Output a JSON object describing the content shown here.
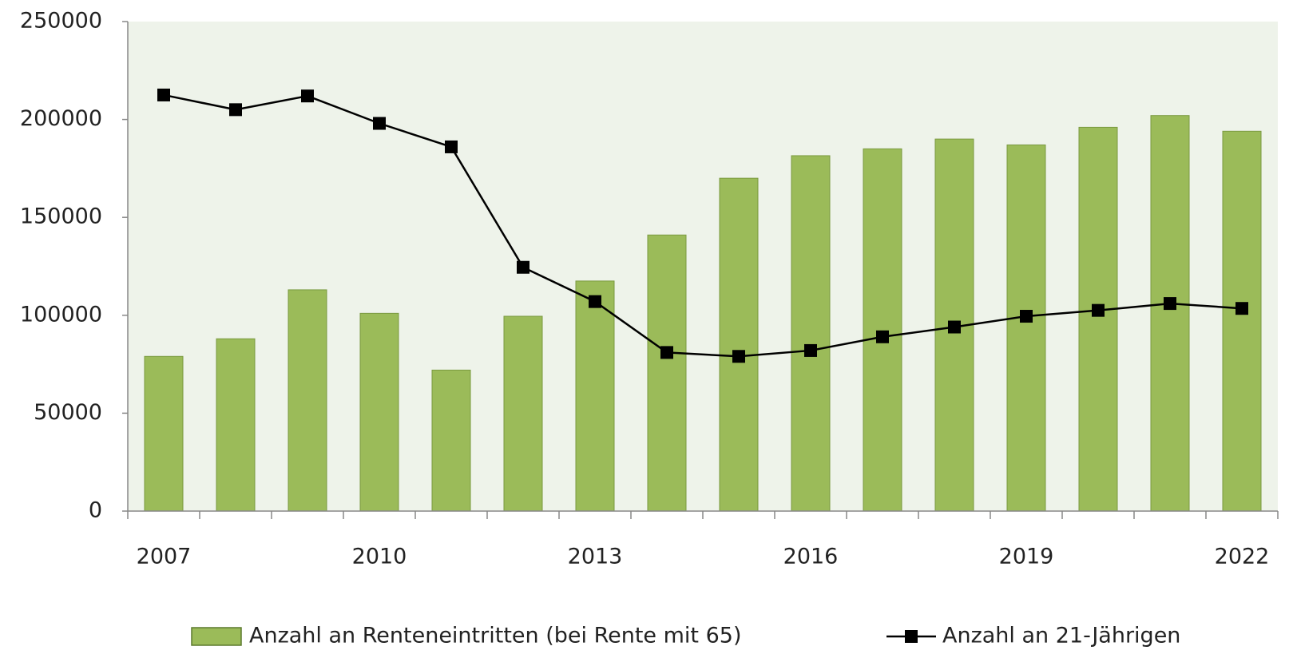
{
  "chart_data": {
    "type": "bar_line",
    "categories": [
      "2007",
      null,
      null,
      "2010",
      null,
      null,
      "2013",
      null,
      null,
      "2016",
      null,
      null,
      "2019",
      null,
      null,
      "2022"
    ],
    "series": [
      {
        "name": "Anzahl an Renteneintritten (bei Rente mit 65)",
        "type": "bar",
        "color": "#9bbb59",
        "values": [
          79000,
          88000,
          113000,
          101000,
          72000,
          99500,
          117500,
          141000,
          170000,
          181500,
          185000,
          190000,
          187000,
          196000,
          202000,
          194000
        ]
      },
      {
        "name": "Anzahl an 21-Jährigen",
        "type": "line",
        "color": "#000000",
        "values": [
          212500,
          205000,
          212000,
          198000,
          186000,
          124500,
          107000,
          81000,
          79000,
          82000,
          89000,
          94000,
          99500,
          102500,
          106000,
          103500
        ]
      }
    ],
    "ylim": [
      0,
      250000
    ],
    "yticks": [
      0,
      50000,
      100000,
      150000,
      200000,
      250000
    ],
    "grid": false
  }
}
